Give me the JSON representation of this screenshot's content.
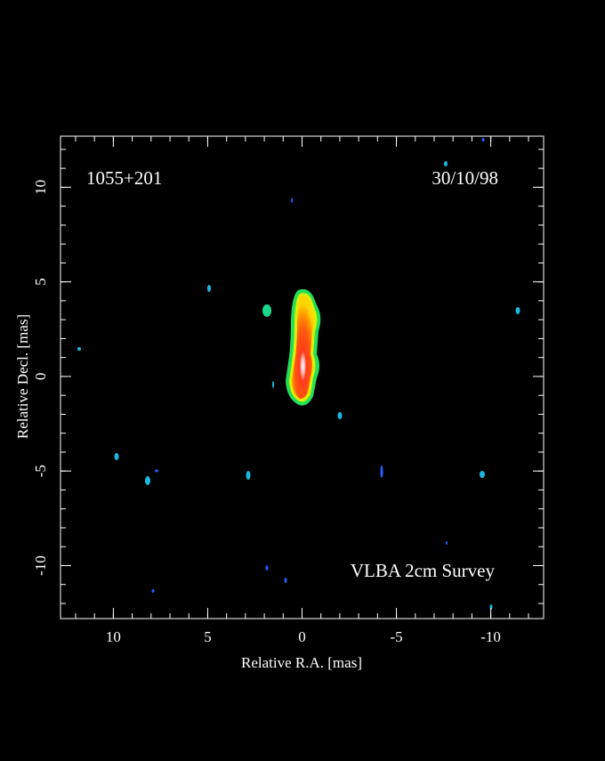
{
  "chart_data": {
    "type": "image",
    "source": "1055+201",
    "date": "30/10/98",
    "survey": "VLBA 2cm Survey",
    "x_label": "Relative R.A. [mas]",
    "y_label": "Relative Decl. [mas]",
    "xlim": [
      12.8,
      -12.8
    ],
    "ylim": [
      -12.8,
      12.7
    ],
    "xticks": [
      10,
      5,
      0,
      -5,
      -10
    ],
    "yticks": [
      -10,
      -5,
      0,
      5,
      10
    ]
  }
}
